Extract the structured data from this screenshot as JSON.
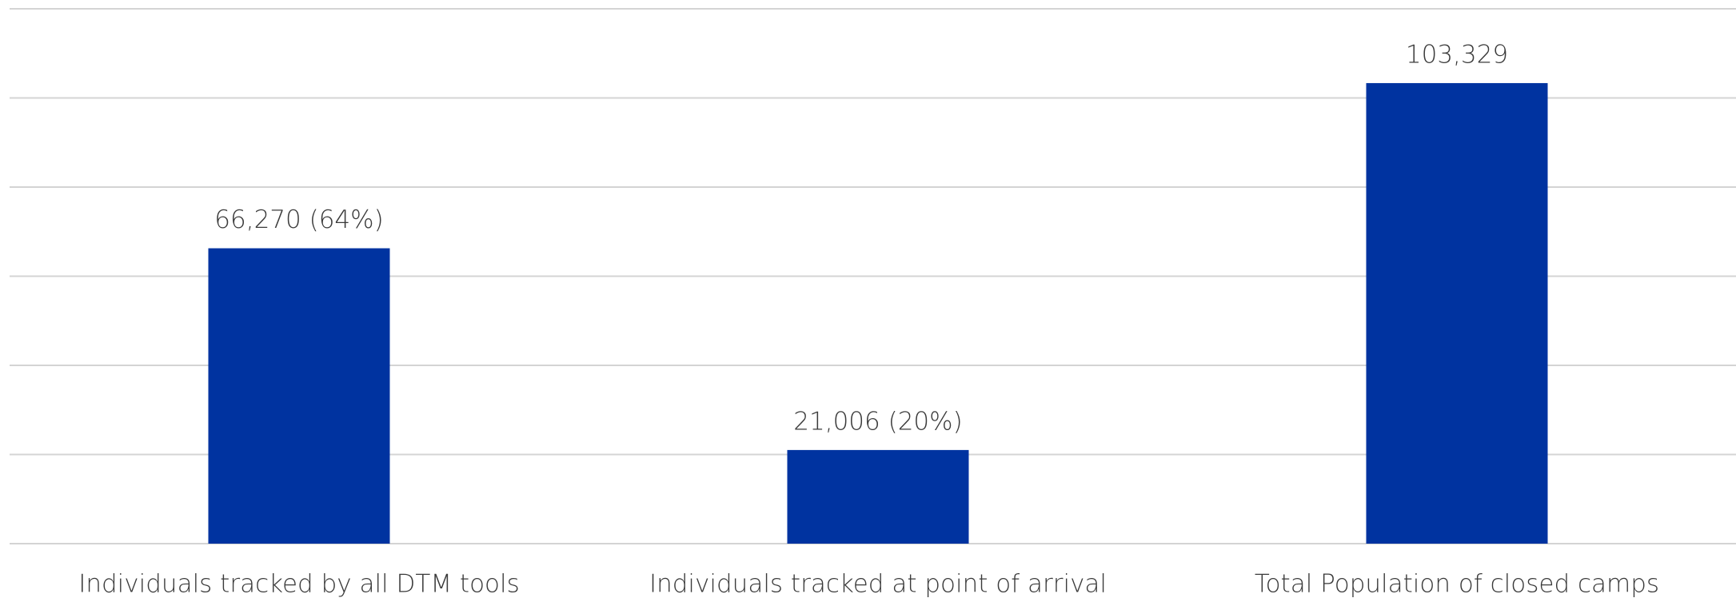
{
  "chart_data": {
    "type": "bar",
    "categories": [
      "Individuals tracked by all DTM tools",
      "Individuals tracked at point of arrival",
      "Total Population of closed camps"
    ],
    "values": [
      66270,
      21006,
      103329
    ],
    "value_labels": [
      "66,270 (64%)",
      "21,006  (20%)",
      "103,329"
    ],
    "color": "#0033a0",
    "ylim": [
      0,
      120000
    ],
    "yticks": [
      0,
      20000,
      40000,
      60000,
      80000,
      100000,
      120000
    ],
    "grid": true
  }
}
